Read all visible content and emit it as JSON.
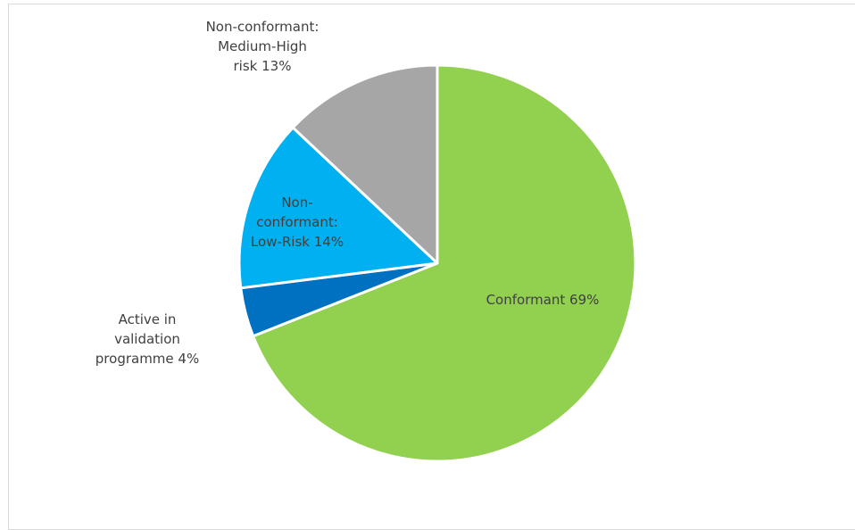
{
  "chart_data": {
    "type": "pie",
    "slices": [
      {
        "name": "Conformant",
        "value": 69,
        "label_lines": [
          "Conformant 69%"
        ],
        "color": "#92d050"
      },
      {
        "name": "Active in validation programme",
        "value": 4,
        "label_lines": [
          "Active in",
          "validation",
          "programme 4%"
        ],
        "color": "#0070c0"
      },
      {
        "name": "Non-conformant: Low-Risk",
        "value": 14,
        "label_lines": [
          "Non-",
          "conformant:",
          "Low-Risk 14%"
        ],
        "color": "#00b0f0"
      },
      {
        "name": "Non-conformant: Medium-High risk",
        "value": 13,
        "label_lines": [
          "Non-conformant:",
          "Medium-High",
          "risk 13%"
        ],
        "color": "#a6a6a6"
      }
    ],
    "start_angle_deg": 0,
    "direction": "clockwise",
    "legend": "none",
    "label_color": "#404040"
  }
}
